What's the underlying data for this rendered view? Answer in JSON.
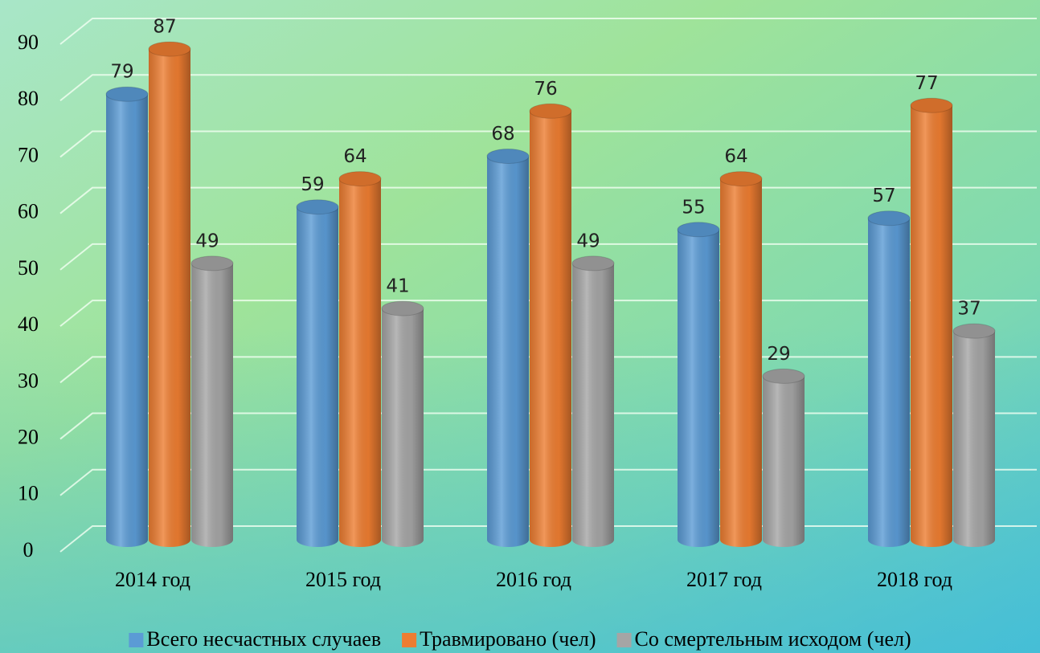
{
  "chart_data": {
    "type": "bar3d",
    "categories": [
      "2014 год",
      "2015 год",
      "2016 год",
      "2017 год",
      "2018 год"
    ],
    "series": [
      {
        "name": "Всего несчастных случаев",
        "color": "#5b9bd5",
        "values": [
          79,
          59,
          68,
          55,
          57
        ]
      },
      {
        "name": "Травмировано (чел)",
        "color": "#ed7d31",
        "values": [
          87,
          64,
          76,
          64,
          77
        ]
      },
      {
        "name": "Со смертельным исходом (чел)",
        "color": "#a5a5a5",
        "values": [
          49,
          41,
          49,
          29,
          37
        ]
      }
    ],
    "ylim": [
      0,
      90
    ],
    "yticks": [
      0,
      10,
      20,
      30,
      40,
      50,
      60,
      70,
      80,
      90
    ],
    "grid": true,
    "legend": "bottom"
  }
}
